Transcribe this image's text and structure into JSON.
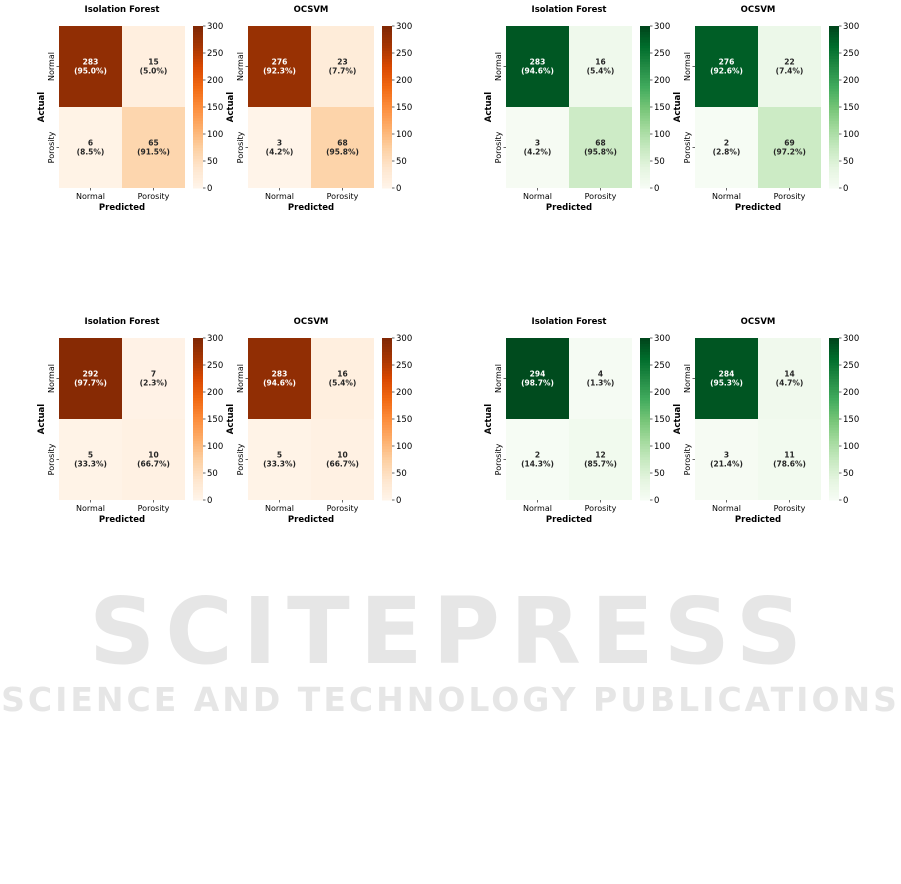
{
  "watermark": {
    "title": "SCITEPRESS",
    "subtitle": "SCIENCE AND TECHNOLOGY PUBLICATIONS"
  },
  "colormaps": {
    "oranges": [
      "#fff5eb",
      "#fee6ce",
      "#fdd0a2",
      "#fdae6b",
      "#fd8d3c",
      "#f16913",
      "#d94801",
      "#a63603",
      "#7f2704"
    ],
    "greens": [
      "#f7fcf5",
      "#e5f5e0",
      "#c7e9c0",
      "#a1d99b",
      "#74c476",
      "#41ab5d",
      "#238b45",
      "#006d2c",
      "#00441b"
    ]
  },
  "chart_data": [
    {
      "type": "heatmap",
      "title": "Isolation Forest",
      "colormap": "oranges",
      "xlabel": "Predicted",
      "ylabel": "Actual",
      "x_categories": [
        "Normal",
        "Porosity"
      ],
      "y_categories": [
        "Normal",
        "Porosity"
      ],
      "values": [
        [
          283,
          15
        ],
        [
          6,
          65
        ]
      ],
      "percents": [
        [
          "95.0%",
          "5.0%"
        ],
        [
          "8.5%",
          "91.5%"
        ]
      ],
      "colorbar": {
        "range": [
          0,
          300
        ],
        "ticks": [
          0,
          50,
          100,
          150,
          200,
          250,
          300
        ]
      }
    },
    {
      "type": "heatmap",
      "title": "OCSVM",
      "colormap": "oranges",
      "xlabel": "Predicted",
      "ylabel": "Actual",
      "x_categories": [
        "Normal",
        "Porosity"
      ],
      "y_categories": [
        "Normal",
        "Porosity"
      ],
      "values": [
        [
          276,
          23
        ],
        [
          3,
          68
        ]
      ],
      "percents": [
        [
          "92.3%",
          "7.7%"
        ],
        [
          "4.2%",
          "95.8%"
        ]
      ],
      "colorbar": {
        "range": [
          0,
          300
        ],
        "ticks": [
          0,
          50,
          100,
          150,
          200,
          250,
          300
        ]
      }
    },
    {
      "type": "heatmap",
      "title": "Isolation Forest",
      "colormap": "greens",
      "xlabel": "Predicted",
      "ylabel": "Actual",
      "x_categories": [
        "Normal",
        "Porosity"
      ],
      "y_categories": [
        "Normal",
        "Porosity"
      ],
      "values": [
        [
          283,
          16
        ],
        [
          3,
          68
        ]
      ],
      "percents": [
        [
          "94.6%",
          "5.4%"
        ],
        [
          "4.2%",
          "95.8%"
        ]
      ],
      "colorbar": {
        "range": [
          0,
          300
        ],
        "ticks": [
          0,
          50,
          100,
          150,
          200,
          250,
          300
        ]
      }
    },
    {
      "type": "heatmap",
      "title": "OCSVM",
      "colormap": "greens",
      "xlabel": "Predicted",
      "ylabel": "Actual",
      "x_categories": [
        "Normal",
        "Porosity"
      ],
      "y_categories": [
        "Normal",
        "Porosity"
      ],
      "values": [
        [
          276,
          22
        ],
        [
          2,
          69
        ]
      ],
      "percents": [
        [
          "92.6%",
          "7.4%"
        ],
        [
          "2.8%",
          "97.2%"
        ]
      ],
      "colorbar": {
        "range": [
          0,
          300
        ],
        "ticks": [
          0,
          50,
          100,
          150,
          200,
          250,
          300
        ]
      }
    },
    {
      "type": "heatmap",
      "title": "Isolation Forest",
      "colormap": "oranges",
      "xlabel": "Predicted",
      "ylabel": "Actual",
      "x_categories": [
        "Normal",
        "Porosity"
      ],
      "y_categories": [
        "Normal",
        "Porosity"
      ],
      "values": [
        [
          292,
          7
        ],
        [
          5,
          10
        ]
      ],
      "percents": [
        [
          "97.7%",
          "2.3%"
        ],
        [
          "33.3%",
          "66.7%"
        ]
      ],
      "colorbar": {
        "range": [
          0,
          300
        ],
        "ticks": [
          0,
          50,
          100,
          150,
          200,
          250,
          300
        ]
      }
    },
    {
      "type": "heatmap",
      "title": "OCSVM",
      "colormap": "oranges",
      "xlabel": "Predicted",
      "ylabel": "Actual",
      "x_categories": [
        "Normal",
        "Porosity"
      ],
      "y_categories": [
        "Normal",
        "Porosity"
      ],
      "values": [
        [
          283,
          16
        ],
        [
          5,
          10
        ]
      ],
      "percents": [
        [
          "94.6%",
          "5.4%"
        ],
        [
          "33.3%",
          "66.7%"
        ]
      ],
      "colorbar": {
        "range": [
          0,
          300
        ],
        "ticks": [
          0,
          50,
          100,
          150,
          200,
          250,
          300
        ]
      }
    },
    {
      "type": "heatmap",
      "title": "Isolation Forest",
      "colormap": "greens",
      "xlabel": "Predicted",
      "ylabel": "Actual",
      "x_categories": [
        "Normal",
        "Porosity"
      ],
      "y_categories": [
        "Normal",
        "Porosity"
      ],
      "values": [
        [
          294,
          4
        ],
        [
          2,
          12
        ]
      ],
      "percents": [
        [
          "98.7%",
          "1.3%"
        ],
        [
          "14.3%",
          "85.7%"
        ]
      ],
      "colorbar": {
        "range": [
          0,
          300
        ],
        "ticks": [
          0,
          50,
          100,
          150,
          200,
          250,
          300
        ]
      }
    },
    {
      "type": "heatmap",
      "title": "OCSVM",
      "colormap": "greens",
      "xlabel": "Predicted",
      "ylabel": "Actual",
      "x_categories": [
        "Normal",
        "Porosity"
      ],
      "y_categories": [
        "Normal",
        "Porosity"
      ],
      "values": [
        [
          284,
          14
        ],
        [
          3,
          11
        ]
      ],
      "percents": [
        [
          "95.3%",
          "4.7%"
        ],
        [
          "21.4%",
          "78.6%"
        ]
      ],
      "colorbar": {
        "range": [
          0,
          300
        ],
        "ticks": [
          0,
          50,
          100,
          150,
          200,
          250,
          300
        ]
      }
    }
  ]
}
